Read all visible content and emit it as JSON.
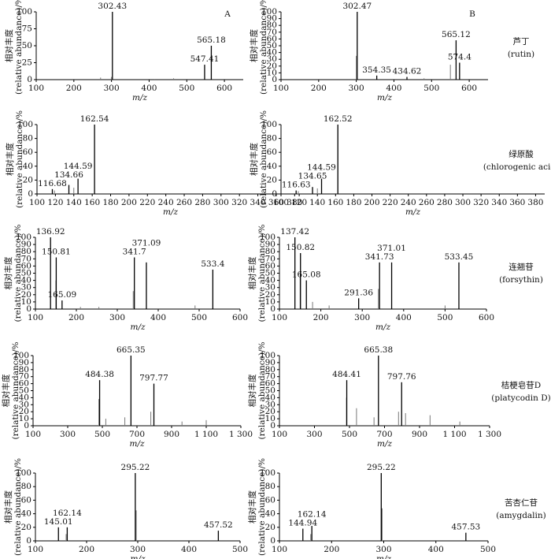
{
  "compounds": [
    {
      "name": "芦丁",
      "latin": "(rutin)"
    },
    {
      "name": "绿原酸",
      "latin": "(chlorogenic acid)"
    },
    {
      "name": "连翘苷",
      "latin": "(forsythin)"
    },
    {
      "name": "桔梗皂苷D",
      "latin": "(platycodin D)"
    },
    {
      "name": "苦杏仁苷",
      "latin": "(amygdalin)"
    }
  ],
  "chart_data": [
    {
      "type": "bar",
      "panel_label": "A",
      "xlabel": "m/z",
      "ylabel": [
        "相对丰度",
        "(relative abundance)/%"
      ],
      "xlim": [
        100,
        650
      ],
      "xticks": [
        100,
        200,
        300,
        400,
        500,
        600
      ],
      "ylim": [
        0,
        100
      ],
      "yticks": [
        0,
        25,
        50,
        75,
        100
      ],
      "x": [
        302.43,
        547.41,
        565.18
      ],
      "values": [
        100,
        22,
        50
      ],
      "minor_peaks": {
        "x": [
          271,
          415,
          465,
          300
        ],
        "values": [
          3,
          1,
          2,
          4
        ]
      }
    },
    {
      "type": "bar",
      "panel_label": "B",
      "xlabel": "m/z",
      "ylabel": [
        "相对丰度",
        "(relative abundance)/%"
      ],
      "xlim": [
        100,
        650
      ],
      "xticks": [
        100,
        200,
        300,
        400,
        500,
        600
      ],
      "ylim": [
        0,
        100
      ],
      "yticks": [
        0,
        10,
        20,
        30,
        40,
        50,
        60,
        70,
        80,
        90,
        100
      ],
      "x": [
        302.47,
        354.35,
        434.62,
        574.4,
        565.12
      ],
      "values": [
        100,
        6,
        4,
        25,
        58
      ],
      "minor_peaks": {
        "x": [
          300,
          550,
          480
        ],
        "values": [
          35,
          22,
          2
        ]
      }
    },
    {
      "type": "bar",
      "xlabel": "m/z",
      "ylabel": [
        "相对丰度",
        "(relative abundance)/%"
      ],
      "xlim": [
        100,
        390
      ],
      "xticks": [
        100,
        120,
        140,
        160,
        180,
        200,
        220,
        240,
        260,
        280,
        300,
        320,
        340,
        360,
        380
      ],
      "ylim": [
        0,
        100
      ],
      "yticks": [
        0,
        20,
        40,
        60,
        80,
        100
      ],
      "x": [
        116.68,
        134.66,
        144.59,
        162.54
      ],
      "values": [
        7,
        13,
        22,
        100
      ],
      "minor_peaks": {
        "x": [
          140,
          119,
          180
        ],
        "values": [
          9,
          5,
          1
        ]
      }
    },
    {
      "type": "bar",
      "xlabel": "m/z",
      "ylabel": [
        "相对丰度",
        "(relative abundance)/%"
      ],
      "xlim": [
        100,
        390
      ],
      "xticks": [
        100,
        120,
        140,
        160,
        180,
        200,
        220,
        240,
        260,
        280,
        300,
        320,
        340,
        360,
        380
      ],
      "ylim": [
        0,
        100
      ],
      "yticks": [
        0,
        20,
        40,
        60,
        80,
        100
      ],
      "x": [
        116.63,
        134.65,
        144.59,
        162.52
      ],
      "values": [
        5,
        10,
        22,
        100
      ],
      "minor_peaks": {
        "x": [
          140,
          119
        ],
        "values": [
          8,
          4
        ]
      }
    },
    {
      "type": "bar",
      "xlabel": "m/z",
      "ylabel": [
        "相对丰度",
        "(relative abundance)/%"
      ],
      "xlim": [
        100,
        600
      ],
      "xticks": [
        100,
        200,
        300,
        400,
        500,
        600
      ],
      "ylim": [
        0,
        100
      ],
      "yticks": [
        0,
        10,
        20,
        30,
        40,
        50,
        60,
        70,
        80,
        90,
        100
      ],
      "x": [
        136.92,
        150.81,
        165.09,
        341.7,
        371.09,
        533.4
      ],
      "values": [
        100,
        72,
        12,
        72,
        65,
        55
      ],
      "minor_peaks": {
        "x": [
          339,
          255,
          490,
          150,
          210
        ],
        "values": [
          25,
          3,
          5,
          40,
          3
        ]
      }
    },
    {
      "type": "bar",
      "xlabel": "m/z",
      "ylabel": [
        "相对丰度",
        "(relative abundance)/%"
      ],
      "xlim": [
        100,
        600
      ],
      "xticks": [
        100,
        200,
        300,
        400,
        500,
        600
      ],
      "ylim": [
        0,
        100
      ],
      "yticks": [
        0,
        10,
        20,
        30,
        40,
        50,
        60,
        70,
        80,
        90,
        100
      ],
      "x": [
        137.42,
        150.82,
        165.08,
        291.36,
        341.73,
        371.01,
        533.45
      ],
      "values": [
        100,
        78,
        40,
        15,
        65,
        65,
        65
      ],
      "minor_peaks": {
        "x": [
          220,
          339,
          150,
          180,
          500
        ],
        "values": [
          5,
          28,
          45,
          10,
          5
        ]
      }
    },
    {
      "type": "bar",
      "xlabel": "m/z",
      "ylabel": [
        "相对丰度",
        "(relative abundance)/%"
      ],
      "xlim": [
        100,
        1300
      ],
      "xticks": [
        100,
        300,
        500,
        700,
        900,
        {
          "value": 1100,
          "label": "1 100"
        },
        {
          "value": 1300,
          "label": "1 300"
        }
      ],
      "ylim": [
        0,
        100
      ],
      "yticks": [
        0,
        10,
        20,
        30,
        40,
        50,
        60,
        70,
        80,
        90,
        100
      ],
      "x": [
        484.38,
        665.35,
        797.77
      ],
      "values": [
        65,
        100,
        60
      ],
      "minor_peaks": {
        "x": [
          480,
          520,
          630,
          780,
          1100,
          960
        ],
        "values": [
          38,
          10,
          12,
          20,
          8,
          6
        ]
      }
    },
    {
      "type": "bar",
      "xlabel": "m/z",
      "ylabel": [
        "相对丰度",
        "(relative abundance)/%"
      ],
      "xlim": [
        100,
        1300
      ],
      "xticks": [
        100,
        300,
        500,
        700,
        900,
        {
          "value": 1100,
          "label": "1 100"
        },
        {
          "value": 1300,
          "label": "1 300"
        }
      ],
      "ylim": [
        0,
        100
      ],
      "yticks": [
        0,
        10,
        20,
        30,
        40,
        50,
        60,
        70,
        80,
        90,
        100
      ],
      "x": [
        484.41,
        665.38,
        797.76
      ],
      "values": [
        65,
        100,
        62
      ],
      "minor_peaks": {
        "x": [
          483,
          540,
          640,
          780,
          820,
          960,
          1130
        ],
        "values": [
          40,
          25,
          12,
          20,
          18,
          15,
          6
        ]
      }
    },
    {
      "type": "bar",
      "xlabel": "m/z",
      "ylabel": [
        "相对丰度",
        "(relative abundance)/%"
      ],
      "xlim": [
        100,
        500
      ],
      "xticks": [
        100,
        200,
        300,
        400,
        500
      ],
      "ylim": [
        0,
        100
      ],
      "yticks": [
        0,
        20,
        40,
        60,
        80,
        100
      ],
      "x": [
        145.01,
        162.14,
        295.22,
        457.52
      ],
      "values": [
        20,
        20,
        100,
        15
      ],
      "minor_peaks": {
        "x": [
          297,
          160
        ],
        "values": [
          45,
          10
        ]
      }
    },
    {
      "type": "bar",
      "xlabel": "m/z",
      "ylabel": [
        "相对丰度",
        "(relative abundance)/%"
      ],
      "xlim": [
        100,
        500
      ],
      "xticks": [
        100,
        200,
        300,
        400,
        500
      ],
      "ylim": [
        0,
        100
      ],
      "yticks": [
        0,
        20,
        40,
        60,
        80,
        100
      ],
      "x": [
        144.94,
        162.14,
        295.22,
        457.53
      ],
      "values": [
        18,
        22,
        100,
        12
      ],
      "minor_peaks": {
        "x": [
          297,
          160
        ],
        "values": [
          48,
          10
        ]
      }
    }
  ]
}
